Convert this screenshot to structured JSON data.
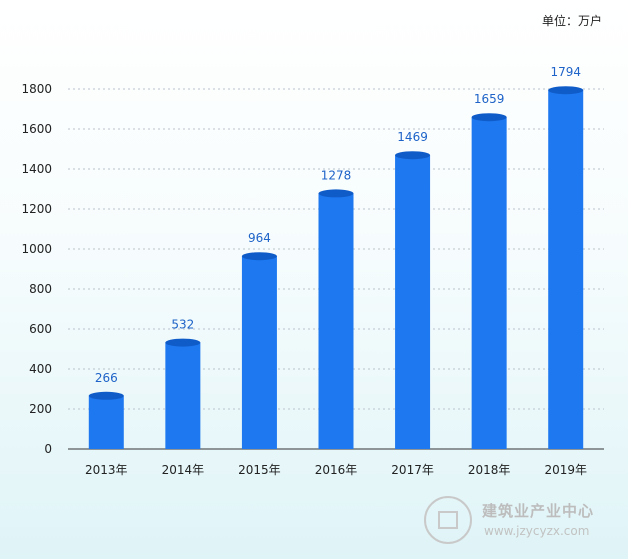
{
  "unit_label": "单位：万户",
  "watermark": {
    "name": "建筑业产业中心",
    "url": "www.jzycyzx.com"
  },
  "colors": {
    "bar": "#1e78f0",
    "bar_top": "#0f5cc9",
    "label": "#1e63c8",
    "grid": "#b9c3cc",
    "axis": "#333333",
    "text": "#222222"
  },
  "chart_data": {
    "type": "bar",
    "title": "",
    "xlabel": "",
    "ylabel": "",
    "categories": [
      "2013年",
      "2014年",
      "2015年",
      "2016年",
      "2017年",
      "2018年",
      "2019年"
    ],
    "values": [
      266,
      532,
      964,
      1278,
      1469,
      1659,
      1794
    ],
    "data_labels": [
      "266",
      "532",
      "964",
      "1278",
      "1469",
      "1659",
      "1794"
    ],
    "ylim": [
      0,
      1800
    ],
    "yticks": [
      0,
      200,
      400,
      600,
      800,
      1000,
      1200,
      1400,
      1600,
      1800
    ],
    "grid": true,
    "legend": "none"
  }
}
